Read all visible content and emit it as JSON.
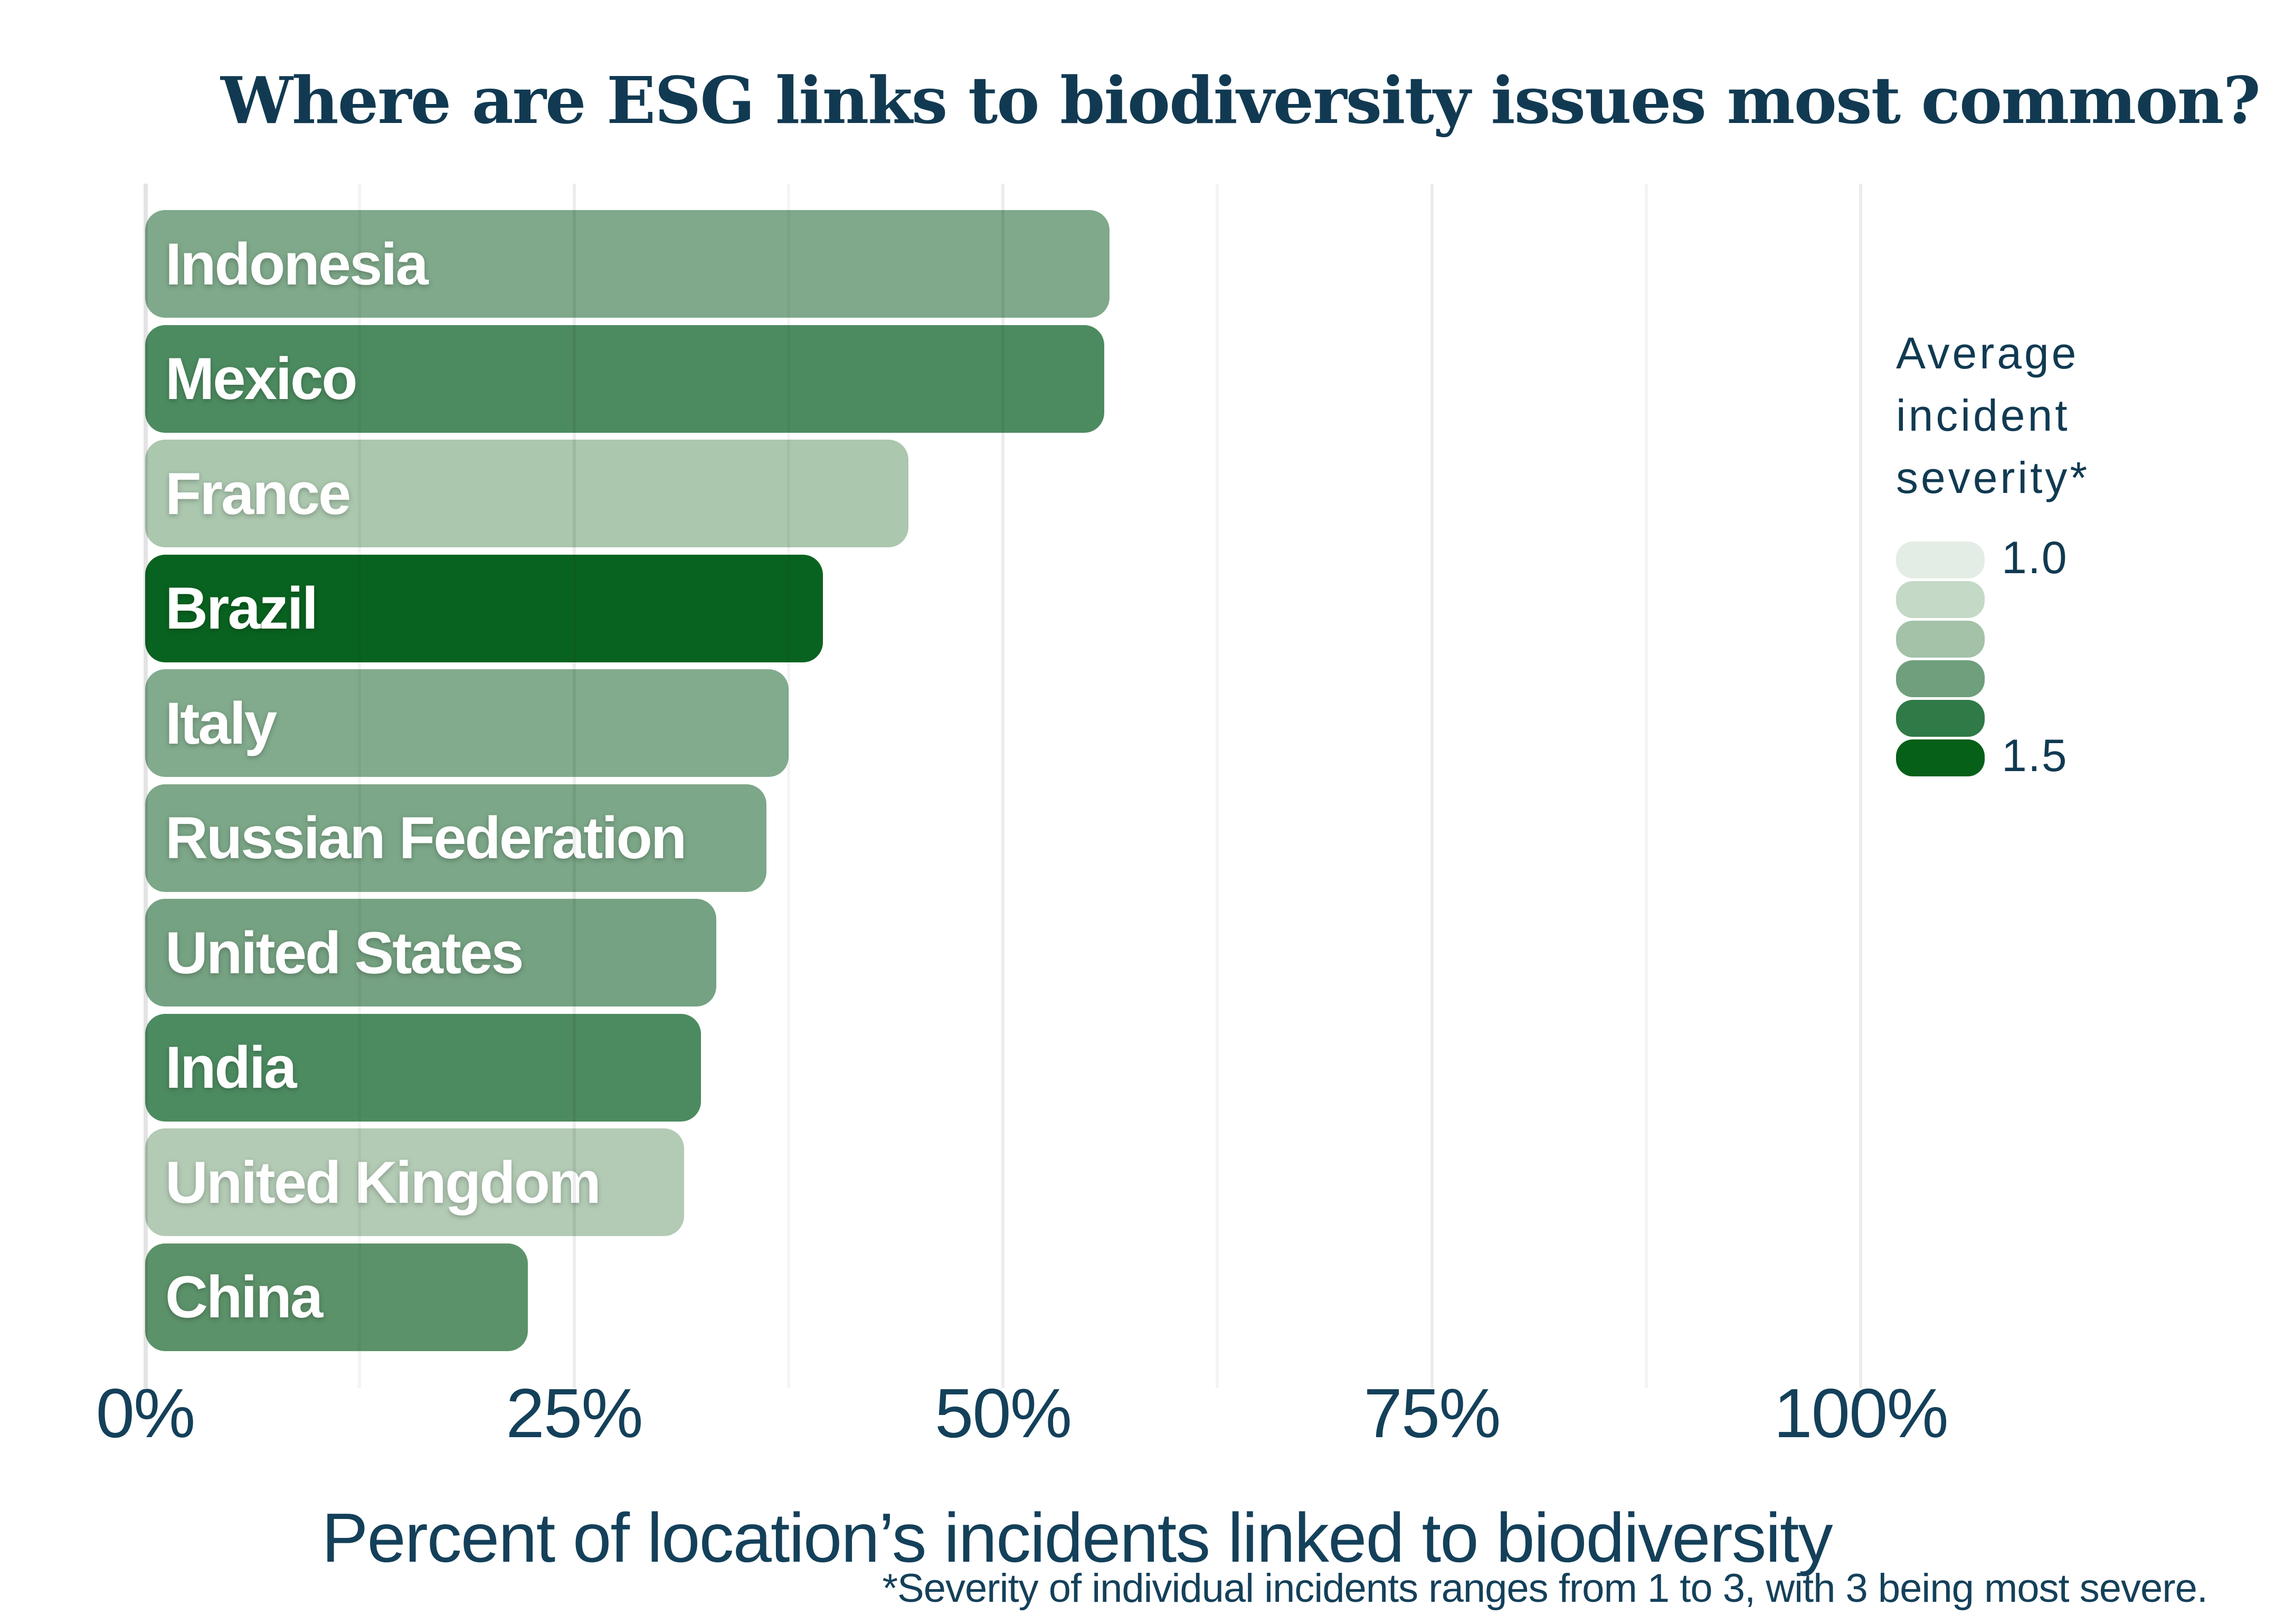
{
  "title": "Where are ESG links to biodiversity issues most common?",
  "chart_data": {
    "type": "bar",
    "orientation": "horizontal",
    "title": "Where are ESG links to biodiversity issues most common?",
    "categories": [
      "Indonesia",
      "Mexico",
      "France",
      "Brazil",
      "Italy",
      "Russian Federation",
      "United States",
      "India",
      "United Kingdom",
      "China"
    ],
    "values": [
      56.2,
      55.9,
      44.5,
      39.5,
      37.5,
      36.2,
      33.3,
      32.4,
      31.4,
      22.3
    ],
    "bar_colors": [
      "#7FA98A",
      "#4C8B60",
      "#ABC7AE",
      "#096320",
      "#82AB8D",
      "#7CA788",
      "#75A282",
      "#4C8B60",
      "#B3CBB5",
      "#5C9269"
    ],
    "xlabel": "Percent of location’s incidents linked to biodiversity",
    "xlim": [
      0,
      100
    ],
    "x_ticks": [
      {
        "value": 0,
        "label": "0%"
      },
      {
        "value": 25,
        "label": "25%"
      },
      {
        "value": 50,
        "label": "50%"
      },
      {
        "value": 75,
        "label": "75%"
      },
      {
        "value": 100,
        "label": "100%"
      }
    ],
    "minor_grid_values": [
      12.5,
      37.5,
      62.5,
      87.5
    ],
    "grid": "vertical",
    "legend": {
      "title": "Average incident severity*",
      "position": "right",
      "min_label": "1.0",
      "max_label": "1.5",
      "swatch_colors": [
        "#E4EDE5",
        "#C4D9C6",
        "#A3C2A7",
        "#6F9F7D",
        "#2F7A46",
        "#066018"
      ]
    },
    "footnote": "*Severity of individual incidents ranges from 1 to 3, with 3 being most severe."
  },
  "colors": {
    "background": "#FFFFFF",
    "title_text": "#113A52",
    "axis_text": "#14405A",
    "bar_label_text": "#FFFFFF"
  }
}
